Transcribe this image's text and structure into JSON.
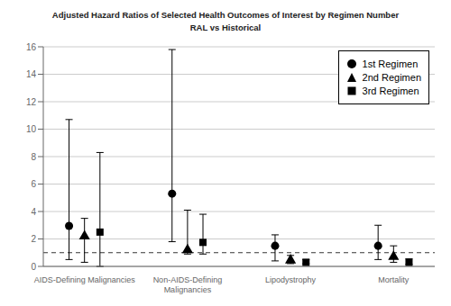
{
  "chart_data": {
    "type": "scatter",
    "title": "Adjusted Hazard Ratios of Selected Health Outcomes of Interest by Regimen Number",
    "subtitle": "RAL vs Historical",
    "categories": [
      "AIDS-Defining Malignancies",
      "Non-AIDS-Defining\nMalignancies",
      "Lipodystrophy",
      "Mortality"
    ],
    "ylim": [
      0,
      16
    ],
    "yticks": [
      0,
      2,
      4,
      6,
      8,
      10,
      12,
      14,
      16
    ],
    "grid": true,
    "legend": "upper right",
    "reference_line": 1,
    "series": [
      {
        "name": "1st Regimen",
        "color": "#000000",
        "marker": "circle",
        "values": [
          2.95,
          5.3,
          1.5,
          1.5
        ],
        "lower": [
          0.5,
          1.8,
          0.4,
          0.5
        ],
        "upper": [
          10.7,
          15.8,
          2.3,
          3.0
        ]
      },
      {
        "name": "2nd Regimen",
        "color": "#000000",
        "marker": "triangle",
        "values": [
          2.2,
          1.2,
          0.45,
          0.7
        ],
        "lower": [
          0.3,
          0.9,
          0.2,
          0.3
        ],
        "upper": [
          3.5,
          4.1,
          0.8,
          1.5
        ]
      },
      {
        "name": "3rd Regimen",
        "color": "#000000",
        "marker": "square",
        "values": [
          2.5,
          1.75,
          0.3,
          0.3
        ],
        "lower": [
          0.0,
          0.9,
          0.2,
          0.15
        ],
        "upper": [
          8.3,
          3.8,
          0.5,
          0.55
        ]
      }
    ]
  }
}
